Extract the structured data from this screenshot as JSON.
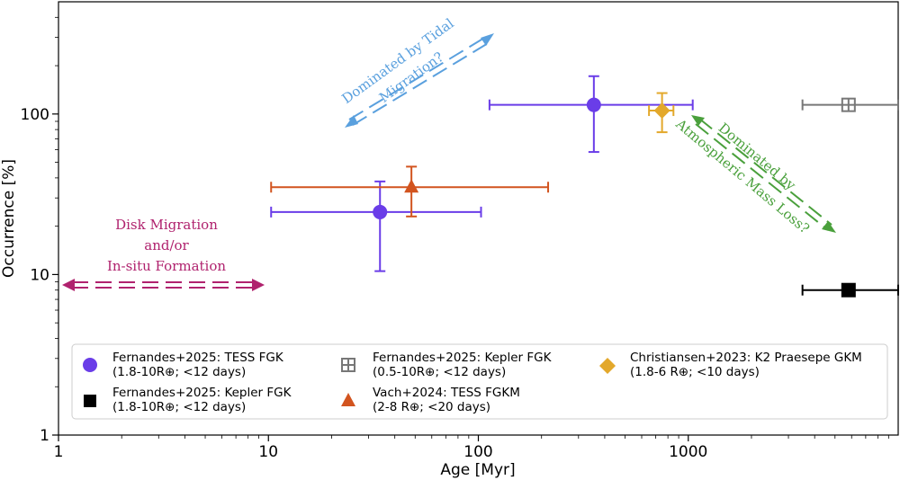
{
  "chart_data": {
    "type": "scatter",
    "xscale": "log",
    "yscale": "log",
    "xlim": [
      1,
      10000
    ],
    "ylim": [
      1,
      500
    ],
    "xlabel": "Age [Myr]",
    "ylabel": "Occurrence [%]",
    "xticks": [
      {
        "value": 1,
        "label": "1"
      },
      {
        "value": 10,
        "label": "10"
      },
      {
        "value": 100,
        "label": "100"
      },
      {
        "value": 1000,
        "label": "1000"
      }
    ],
    "yticks": [
      {
        "value": 1,
        "label": "1"
      },
      {
        "value": 10,
        "label": "10"
      },
      {
        "value": 100,
        "label": "100"
      }
    ],
    "series": [
      {
        "name": "Fernandes+2025: TESS FGK",
        "detail": "(1.8-10R⊕; <12 days)",
        "color": "#6a3de8",
        "marker": "circle",
        "points": [
          {
            "x": 34,
            "y": 24.5,
            "xlo": 10.3,
            "xhi": 103,
            "ylo": 10.5,
            "yhi": 38
          },
          {
            "x": 355,
            "y": 114,
            "xlo": 113,
            "xhi": 1050,
            "ylo": 58,
            "yhi": 172
          }
        ]
      },
      {
        "name": "Fernandes+2025: Kepler FGK",
        "detail": "(1.8-10R⊕; <12 days)",
        "color": "#000000",
        "marker": "square",
        "points": [
          {
            "x": 5800,
            "y": 8,
            "xlo": 3500,
            "xhi": 10000,
            "ylo": 8,
            "yhi": 8
          }
        ]
      },
      {
        "name": "Fernandes+2025: Kepler FGK",
        "detail": "(0.5-10R⊕; <12 days)",
        "color": "#777777",
        "marker": "square-open",
        "points": [
          {
            "x": 5800,
            "y": 114,
            "xlo": 3500,
            "xhi": 10000,
            "ylo": 114,
            "yhi": 114
          }
        ]
      },
      {
        "name": "Vach+2024: TESS FGKM",
        "detail": "(2-8 R⊕; <20 days)",
        "color": "#d2541f",
        "marker": "triangle",
        "points": [
          {
            "x": 48,
            "y": 35,
            "xlo": 10.3,
            "xhi": 215,
            "ylo": 23,
            "yhi": 47
          }
        ]
      },
      {
        "name": "Christiansen+2023: K2 Praesepe GKM",
        "detail": "(1.8-6 R⊕; <10 days)",
        "color": "#e3a82b",
        "marker": "diamond",
        "points": [
          {
            "x": 750,
            "y": 105,
            "xlo": 650,
            "xhi": 850,
            "ylo": 77,
            "yhi": 135
          }
        ]
      }
    ],
    "annotations": [
      {
        "lines": [
          "Disk Migration",
          "and/or",
          "In-situ Formation"
        ],
        "color": "#b0226e"
      },
      {
        "lines": [
          "Dominated by Tidal",
          "Migration?"
        ],
        "color": "#5aa0de"
      },
      {
        "lines": [
          "Dominated by",
          "Atmospheric Mass Loss?"
        ],
        "color": "#4aa03c"
      }
    ],
    "legend": {
      "position": "lower-center",
      "columns": 3
    }
  }
}
